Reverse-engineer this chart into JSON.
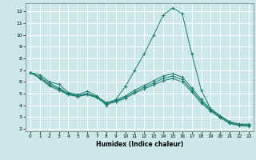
{
  "xlabel": "Humidex (Indice chaleur)",
  "bg_color": "#cce8e8",
  "grid_color": "#ffffff",
  "line_color": "#1a7a6e",
  "xlim": [
    -0.5,
    23.5
  ],
  "ylim": [
    1.8,
    12.7
  ],
  "yticks": [
    2,
    3,
    4,
    5,
    6,
    7,
    8,
    9,
    10,
    11,
    12
  ],
  "xticks": [
    0,
    1,
    2,
    3,
    4,
    5,
    6,
    7,
    8,
    9,
    10,
    11,
    12,
    13,
    14,
    15,
    16,
    17,
    18,
    19,
    20,
    21,
    22,
    23
  ],
  "line1_x": [
    0,
    1,
    2,
    3,
    4,
    5,
    6,
    7,
    8,
    9,
    10,
    11,
    12,
    13,
    14,
    15,
    16,
    17,
    18,
    19,
    20,
    21,
    22,
    23
  ],
  "line1_y": [
    6.8,
    6.6,
    6.0,
    5.8,
    5.1,
    4.9,
    5.2,
    4.8,
    4.0,
    4.5,
    5.6,
    7.0,
    8.4,
    10.0,
    11.7,
    12.3,
    11.8,
    8.4,
    5.3,
    3.7,
    3.1,
    2.6,
    2.4,
    2.4
  ],
  "line2_x": [
    0,
    1,
    2,
    3,
    4,
    5,
    6,
    7,
    8,
    9,
    10,
    11,
    12,
    13,
    14,
    15,
    16,
    17,
    18,
    19,
    20,
    21,
    22,
    23
  ],
  "line2_y": [
    6.8,
    6.4,
    5.9,
    5.5,
    5.0,
    4.85,
    5.0,
    4.75,
    4.25,
    4.45,
    4.8,
    5.3,
    5.7,
    6.1,
    6.5,
    6.7,
    6.4,
    5.5,
    4.5,
    3.7,
    3.1,
    2.6,
    2.4,
    2.35
  ],
  "line3_x": [
    0,
    1,
    2,
    3,
    4,
    5,
    6,
    7,
    8,
    9,
    10,
    11,
    12,
    13,
    14,
    15,
    16,
    17,
    18,
    19,
    20,
    21,
    22,
    23
  ],
  "line3_y": [
    6.8,
    6.35,
    5.75,
    5.4,
    4.95,
    4.8,
    4.95,
    4.7,
    4.15,
    4.35,
    4.7,
    5.15,
    5.55,
    5.9,
    6.3,
    6.5,
    6.2,
    5.3,
    4.35,
    3.6,
    3.0,
    2.5,
    2.32,
    2.28
  ],
  "line4_x": [
    0,
    1,
    2,
    3,
    4,
    5,
    6,
    7,
    8,
    9,
    10,
    11,
    12,
    13,
    14,
    15,
    16,
    17,
    18,
    19,
    20,
    21,
    22,
    23
  ],
  "line4_y": [
    6.8,
    6.3,
    5.65,
    5.3,
    4.9,
    4.75,
    4.9,
    4.65,
    4.1,
    4.3,
    4.6,
    5.05,
    5.4,
    5.75,
    6.1,
    6.3,
    6.0,
    5.15,
    4.2,
    3.5,
    2.95,
    2.45,
    2.28,
    2.22
  ]
}
